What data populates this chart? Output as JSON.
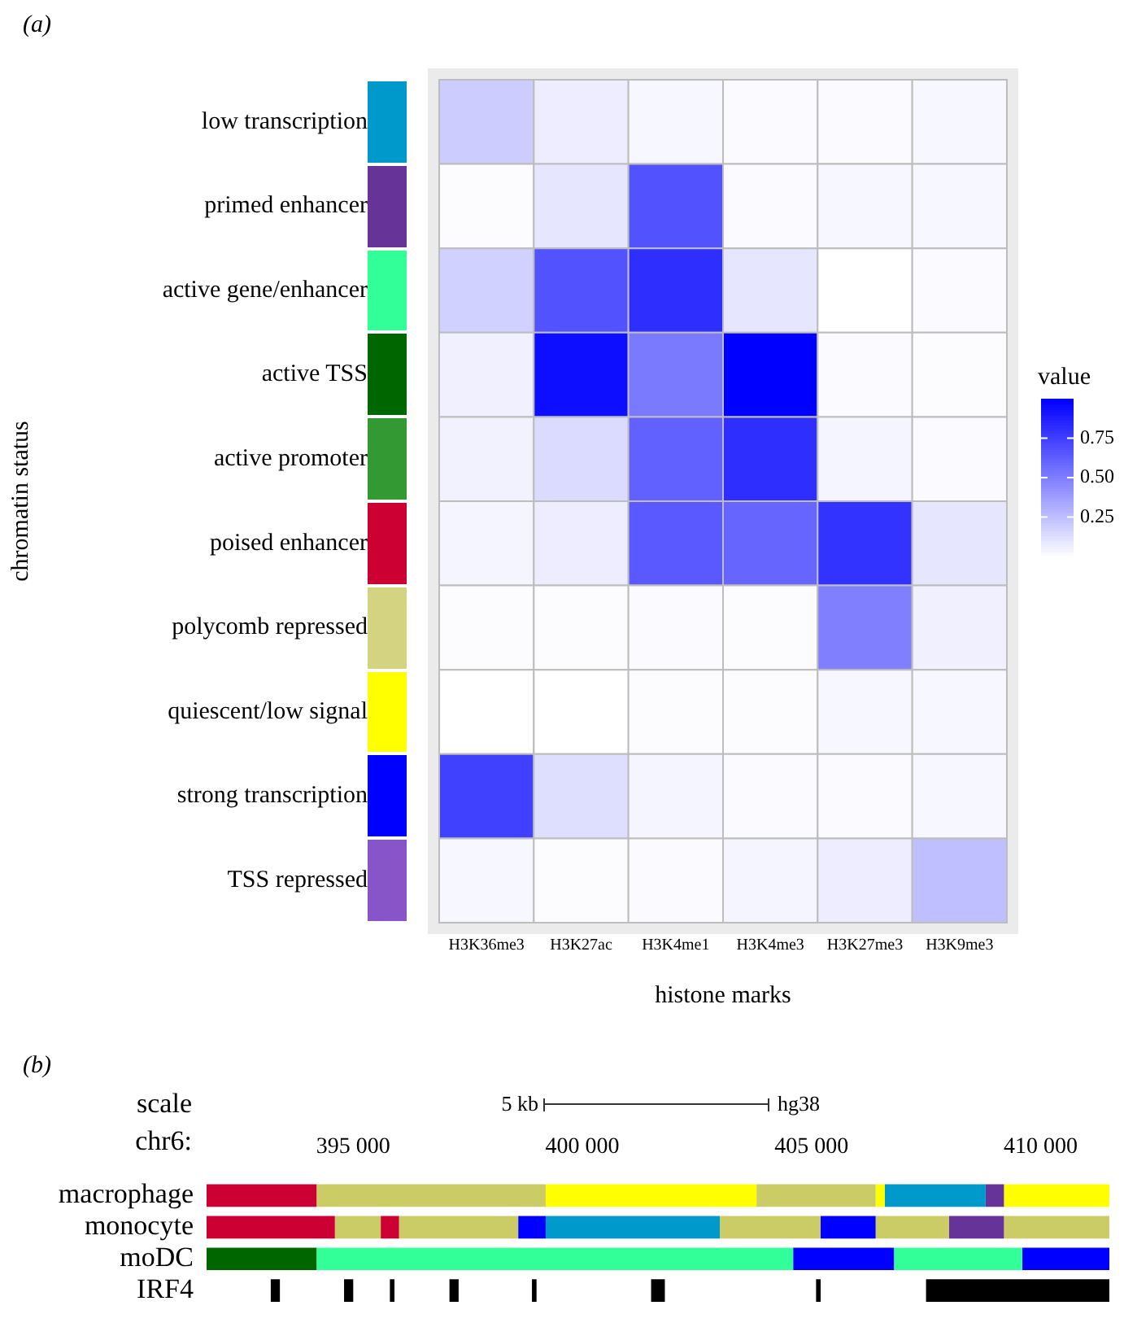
{
  "chart_data": [
    {
      "type": "heatmap",
      "xlabel": "histone marks",
      "ylabel": "chromatin status",
      "legend_title": "value",
      "annotations": [
        "(a)"
      ],
      "categories": [
        "H3K36me3",
        "H3K27ac",
        "H3K4me1",
        "H3K4me3",
        "H3K27me3",
        "H3K9me3"
      ],
      "y_categories": [
        "low transcription",
        "primed enhancer",
        "active gene/enhancer",
        "active TSS",
        "active promoter",
        "poised enhancer",
        "polycomb repressed",
        "quiescent/low signal",
        "strong transcription",
        "TSS repressed"
      ],
      "colors": [
        "#0099cc",
        "#663399",
        "#33ff99",
        "#006600",
        "#339933",
        "#cc0033",
        "#d3d382",
        "#ffff00",
        "#0000ff",
        "#8855c8"
      ],
      "color": "#0000ff",
      "cells": [
        [
          0.2,
          0.07,
          0.03,
          0.02,
          0.02,
          0.03
        ],
        [
          0.01,
          0.1,
          0.68,
          0.02,
          0.03,
          0.03
        ],
        [
          0.18,
          0.68,
          0.82,
          0.1,
          0.0,
          0.02
        ],
        [
          0.06,
          0.95,
          0.52,
          1.0,
          0.02,
          0.01
        ],
        [
          0.05,
          0.14,
          0.62,
          0.82,
          0.04,
          0.02
        ],
        [
          0.04,
          0.07,
          0.65,
          0.6,
          0.8,
          0.1
        ],
        [
          0.01,
          0.01,
          0.02,
          0.01,
          0.5,
          0.06
        ],
        [
          0.0,
          0.0,
          0.01,
          0.01,
          0.03,
          0.03
        ],
        [
          0.75,
          0.13,
          0.04,
          0.02,
          0.02,
          0.03
        ],
        [
          0.03,
          0.01,
          0.02,
          0.04,
          0.07,
          0.25
        ]
      ],
      "clim": [
        0,
        1
      ],
      "cticks": [
        {
          "value": 0.25,
          "label": "0.25"
        },
        {
          "value": 0.5,
          "label": "0.50"
        },
        {
          "value": 0.75,
          "label": "0.75"
        }
      ],
      "grid": false
    },
    {
      "type": "bar",
      "orientation": "horizontal",
      "xlabel": "chr6:",
      "annotations": [
        "(b)",
        "scale",
        "5 kb",
        "hg38"
      ],
      "categories": [
        "macrophage",
        "monocyte",
        "moDC",
        "IRF4"
      ],
      "xlim": [
        391800,
        411500
      ],
      "xticks": [
        {
          "value": 395000,
          "label": "395 000"
        },
        {
          "value": 400000,
          "label": "400 000"
        },
        {
          "value": 405000,
          "label": "405 000"
        },
        {
          "value": 410000,
          "label": "410 000"
        }
      ],
      "series": [
        {
          "base": [
            391800,
            391800,
            391800,
            393200
          ],
          "values": [
            2400,
            2800,
            2400,
            200
          ],
          "colors": [
            "#cc0033",
            "#cc0033",
            "#006600",
            "#000000"
          ]
        },
        {
          "base": [
            394200,
            394600,
            394200,
            394800
          ],
          "values": [
            5000,
            1000,
            10400,
            200
          ],
          "colors": [
            "#cccc66",
            "#cccc66",
            "#33ff99",
            "#000000"
          ]
        },
        {
          "base": [
            399200,
            395600,
            404600,
            395800
          ],
          "values": [
            4600,
            400,
            2200,
            100
          ],
          "colors": [
            "#ffff00",
            "#cc0033",
            "#0000ff",
            "#000000"
          ]
        },
        {
          "base": [
            403800,
            396000,
            406800,
            397100
          ],
          "values": [
            2600,
            2600,
            2800,
            200
          ],
          "colors": [
            "#cccc66",
            "#cccc66",
            "#33ff99",
            "#000000"
          ]
        },
        {
          "base": [
            406400,
            398600,
            409600,
            398900
          ],
          "values": [
            200,
            600,
            1900,
            100
          ],
          "colors": [
            "#ffff00",
            "#0000ff",
            "#0000ff",
            "#000000"
          ]
        },
        {
          "base": [
            406600,
            399200,
            null,
            401500
          ],
          "values": [
            2200,
            3800,
            null,
            300
          ],
          "colors": [
            "#0099cc",
            "#0099cc",
            "#000000",
            "#000000"
          ]
        },
        {
          "base": [
            408800,
            403000,
            null,
            405100
          ],
          "values": [
            400,
            2200,
            null,
            100
          ],
          "colors": [
            "#663399",
            "#cccc66",
            "#000000",
            "#000000"
          ]
        },
        {
          "base": [
            409200,
            405200,
            null,
            407500
          ],
          "values": [
            2300,
            1200,
            null,
            4000
          ],
          "colors": [
            "#ffff00",
            "#0000ff",
            "#000000",
            "#000000"
          ]
        },
        {
          "base": [
            null,
            406400,
            null,
            null
          ],
          "values": [
            null,
            1600,
            null,
            null
          ],
          "colors": [
            "#000000",
            "#cccc66",
            "#000000",
            "#000000"
          ]
        },
        {
          "base": [
            null,
            408000,
            null,
            null
          ],
          "values": [
            null,
            1200,
            null,
            null
          ],
          "colors": [
            "#000000",
            "#663399",
            "#000000",
            "#000000"
          ]
        },
        {
          "base": [
            null,
            409200,
            null,
            null
          ],
          "values": [
            null,
            2300,
            null,
            null
          ],
          "colors": [
            "#000000",
            "#cccc66",
            "#000000",
            "#000000"
          ]
        }
      ],
      "legend": false,
      "grid": false
    }
  ]
}
